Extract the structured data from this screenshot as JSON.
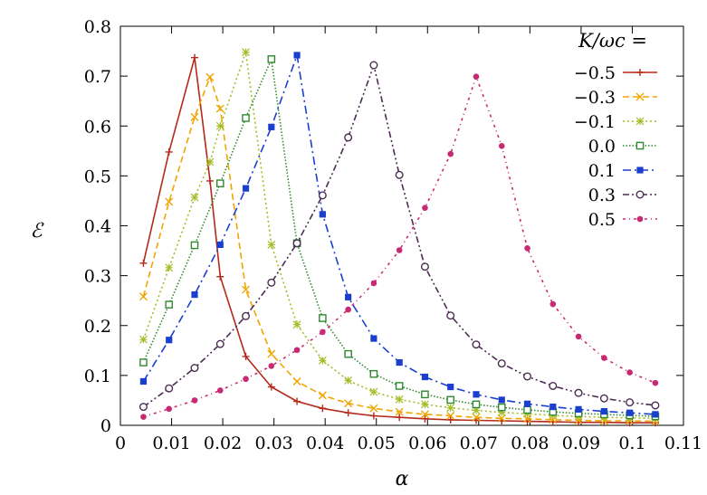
{
  "chart_data": {
    "type": "line",
    "title": "",
    "xlabel": "α",
    "ylabel": "ℰ",
    "xlim": [
      0,
      0.11
    ],
    "ylim": [
      0,
      0.8
    ],
    "xticks": [
      0,
      0.01,
      0.02,
      0.03,
      0.04,
      0.05,
      0.06,
      0.07,
      0.08,
      0.09,
      0.1,
      0.11
    ],
    "xtick_labels": [
      "0",
      "0.01",
      "0.02",
      "0.03",
      "0.04",
      "0.05",
      "0.06",
      "0.07",
      "0.08",
      "0.09",
      "0.1",
      "0.11"
    ],
    "yticks": [
      0,
      0.1,
      0.2,
      0.3,
      0.4,
      0.5,
      0.6,
      0.7,
      0.8
    ],
    "ytick_labels": [
      "0",
      "0.1",
      "0.2",
      "0.3",
      "0.4",
      "0.5",
      "0.6",
      "0.7",
      "0.8"
    ],
    "grid": false,
    "legend": {
      "title": "K/ωc =",
      "placement": "top-right"
    },
    "series": [
      {
        "name": "−0.5",
        "color": "#b5291a",
        "marker": "plus",
        "dash": "solid",
        "x": [
          0.0045,
          0.0095,
          0.0145,
          0.0175,
          0.0195,
          0.0245,
          0.0295,
          0.0345,
          0.0395,
          0.0445,
          0.0495,
          0.0545,
          0.0595,
          0.0645,
          0.0695,
          0.0745,
          0.0795,
          0.0845,
          0.0895,
          0.0945,
          0.0995,
          0.1045
        ],
        "y": [
          0.325,
          0.548,
          0.737,
          0.49,
          0.298,
          0.138,
          0.077,
          0.048,
          0.034,
          0.025,
          0.019,
          0.016,
          0.013,
          0.011,
          0.01,
          0.009,
          0.008,
          0.007,
          0.006,
          0.006,
          0.005,
          0.005
        ]
      },
      {
        "name": "−0.3",
        "color": "#f0a500",
        "marker": "cross",
        "dash": "dashed",
        "x": [
          0.0045,
          0.0095,
          0.0145,
          0.0175,
          0.0195,
          0.0245,
          0.0295,
          0.0345,
          0.0395,
          0.0445,
          0.0495,
          0.0545,
          0.0595,
          0.0645,
          0.0695,
          0.0745,
          0.0795,
          0.0845,
          0.0895,
          0.0945,
          0.0995,
          0.1045
        ],
        "y": [
          0.258,
          0.448,
          0.618,
          0.698,
          0.635,
          0.272,
          0.143,
          0.088,
          0.06,
          0.044,
          0.034,
          0.027,
          0.022,
          0.019,
          0.016,
          0.014,
          0.013,
          0.011,
          0.01,
          0.009,
          0.009,
          0.008
        ]
      },
      {
        "name": "−0.1",
        "color": "#a3bd27",
        "marker": "star",
        "dash": "dotted",
        "x": [
          0.0045,
          0.0095,
          0.0145,
          0.0175,
          0.0195,
          0.0245,
          0.0295,
          0.0345,
          0.0395,
          0.0445,
          0.0495,
          0.0545,
          0.0595,
          0.0645,
          0.0695,
          0.0745,
          0.0795,
          0.0845,
          0.0895,
          0.0945,
          0.0995,
          0.1045
        ],
        "y": [
          0.172,
          0.316,
          0.457,
          0.528,
          0.6,
          0.748,
          0.362,
          0.202,
          0.13,
          0.09,
          0.067,
          0.052,
          0.042,
          0.035,
          0.03,
          0.026,
          0.023,
          0.02,
          0.018,
          0.016,
          0.015,
          0.014
        ]
      },
      {
        "name": "0.0",
        "color": "#2f8a2f",
        "marker": "square-open",
        "dash": "fine-dotted",
        "x": [
          0.0045,
          0.0095,
          0.0145,
          0.0195,
          0.0245,
          0.0295,
          0.0345,
          0.0395,
          0.0445,
          0.0495,
          0.0545,
          0.0595,
          0.0645,
          0.0695,
          0.0745,
          0.0795,
          0.0845,
          0.0895,
          0.0945,
          0.0995,
          0.1045
        ],
        "y": [
          0.126,
          0.242,
          0.361,
          0.485,
          0.616,
          0.734,
          0.365,
          0.215,
          0.143,
          0.103,
          0.079,
          0.062,
          0.051,
          0.042,
          0.036,
          0.031,
          0.027,
          0.024,
          0.022,
          0.02,
          0.018
        ]
      },
      {
        "name": "0.1",
        "color": "#1a3fcf",
        "marker": "square-filled",
        "dash": "dashdot",
        "x": [
          0.0045,
          0.0095,
          0.0145,
          0.0195,
          0.0245,
          0.0295,
          0.0345,
          0.0395,
          0.0445,
          0.0495,
          0.0545,
          0.0595,
          0.0645,
          0.0695,
          0.0745,
          0.0795,
          0.0845,
          0.0895,
          0.0945,
          0.0995,
          0.1045
        ],
        "y": [
          0.088,
          0.171,
          0.262,
          0.362,
          0.475,
          0.598,
          0.742,
          0.423,
          0.257,
          0.174,
          0.126,
          0.097,
          0.077,
          0.062,
          0.051,
          0.043,
          0.037,
          0.032,
          0.028,
          0.025,
          0.022
        ]
      },
      {
        "name": "0.3",
        "color": "#4b2c52",
        "marker": "circle-open",
        "dash": "dashdotdot",
        "x": [
          0.0045,
          0.0095,
          0.0145,
          0.0195,
          0.0245,
          0.0295,
          0.0345,
          0.0395,
          0.0445,
          0.0495,
          0.0545,
          0.0595,
          0.0645,
          0.0695,
          0.0745,
          0.0795,
          0.0845,
          0.0895,
          0.0945,
          0.0995,
          0.1045
        ],
        "y": [
          0.037,
          0.074,
          0.115,
          0.163,
          0.219,
          0.286,
          0.365,
          0.461,
          0.577,
          0.722,
          0.502,
          0.318,
          0.22,
          0.162,
          0.124,
          0.098,
          0.079,
          0.065,
          0.054,
          0.046,
          0.04
        ]
      },
      {
        "name": "0.5",
        "color": "#c72a72",
        "marker": "circle-filled",
        "dash": "dashdot-sparse",
        "x": [
          0.0045,
          0.0095,
          0.0145,
          0.0195,
          0.0245,
          0.0295,
          0.0345,
          0.0395,
          0.0445,
          0.0495,
          0.0545,
          0.0595,
          0.0645,
          0.0695,
          0.0745,
          0.0795,
          0.0845,
          0.0895,
          0.0945,
          0.0995,
          0.1045
        ],
        "y": [
          0.017,
          0.033,
          0.05,
          0.07,
          0.093,
          0.119,
          0.151,
          0.187,
          0.232,
          0.285,
          0.351,
          0.436,
          0.544,
          0.699,
          0.56,
          0.355,
          0.243,
          0.178,
          0.135,
          0.106,
          0.085
        ]
      }
    ]
  }
}
